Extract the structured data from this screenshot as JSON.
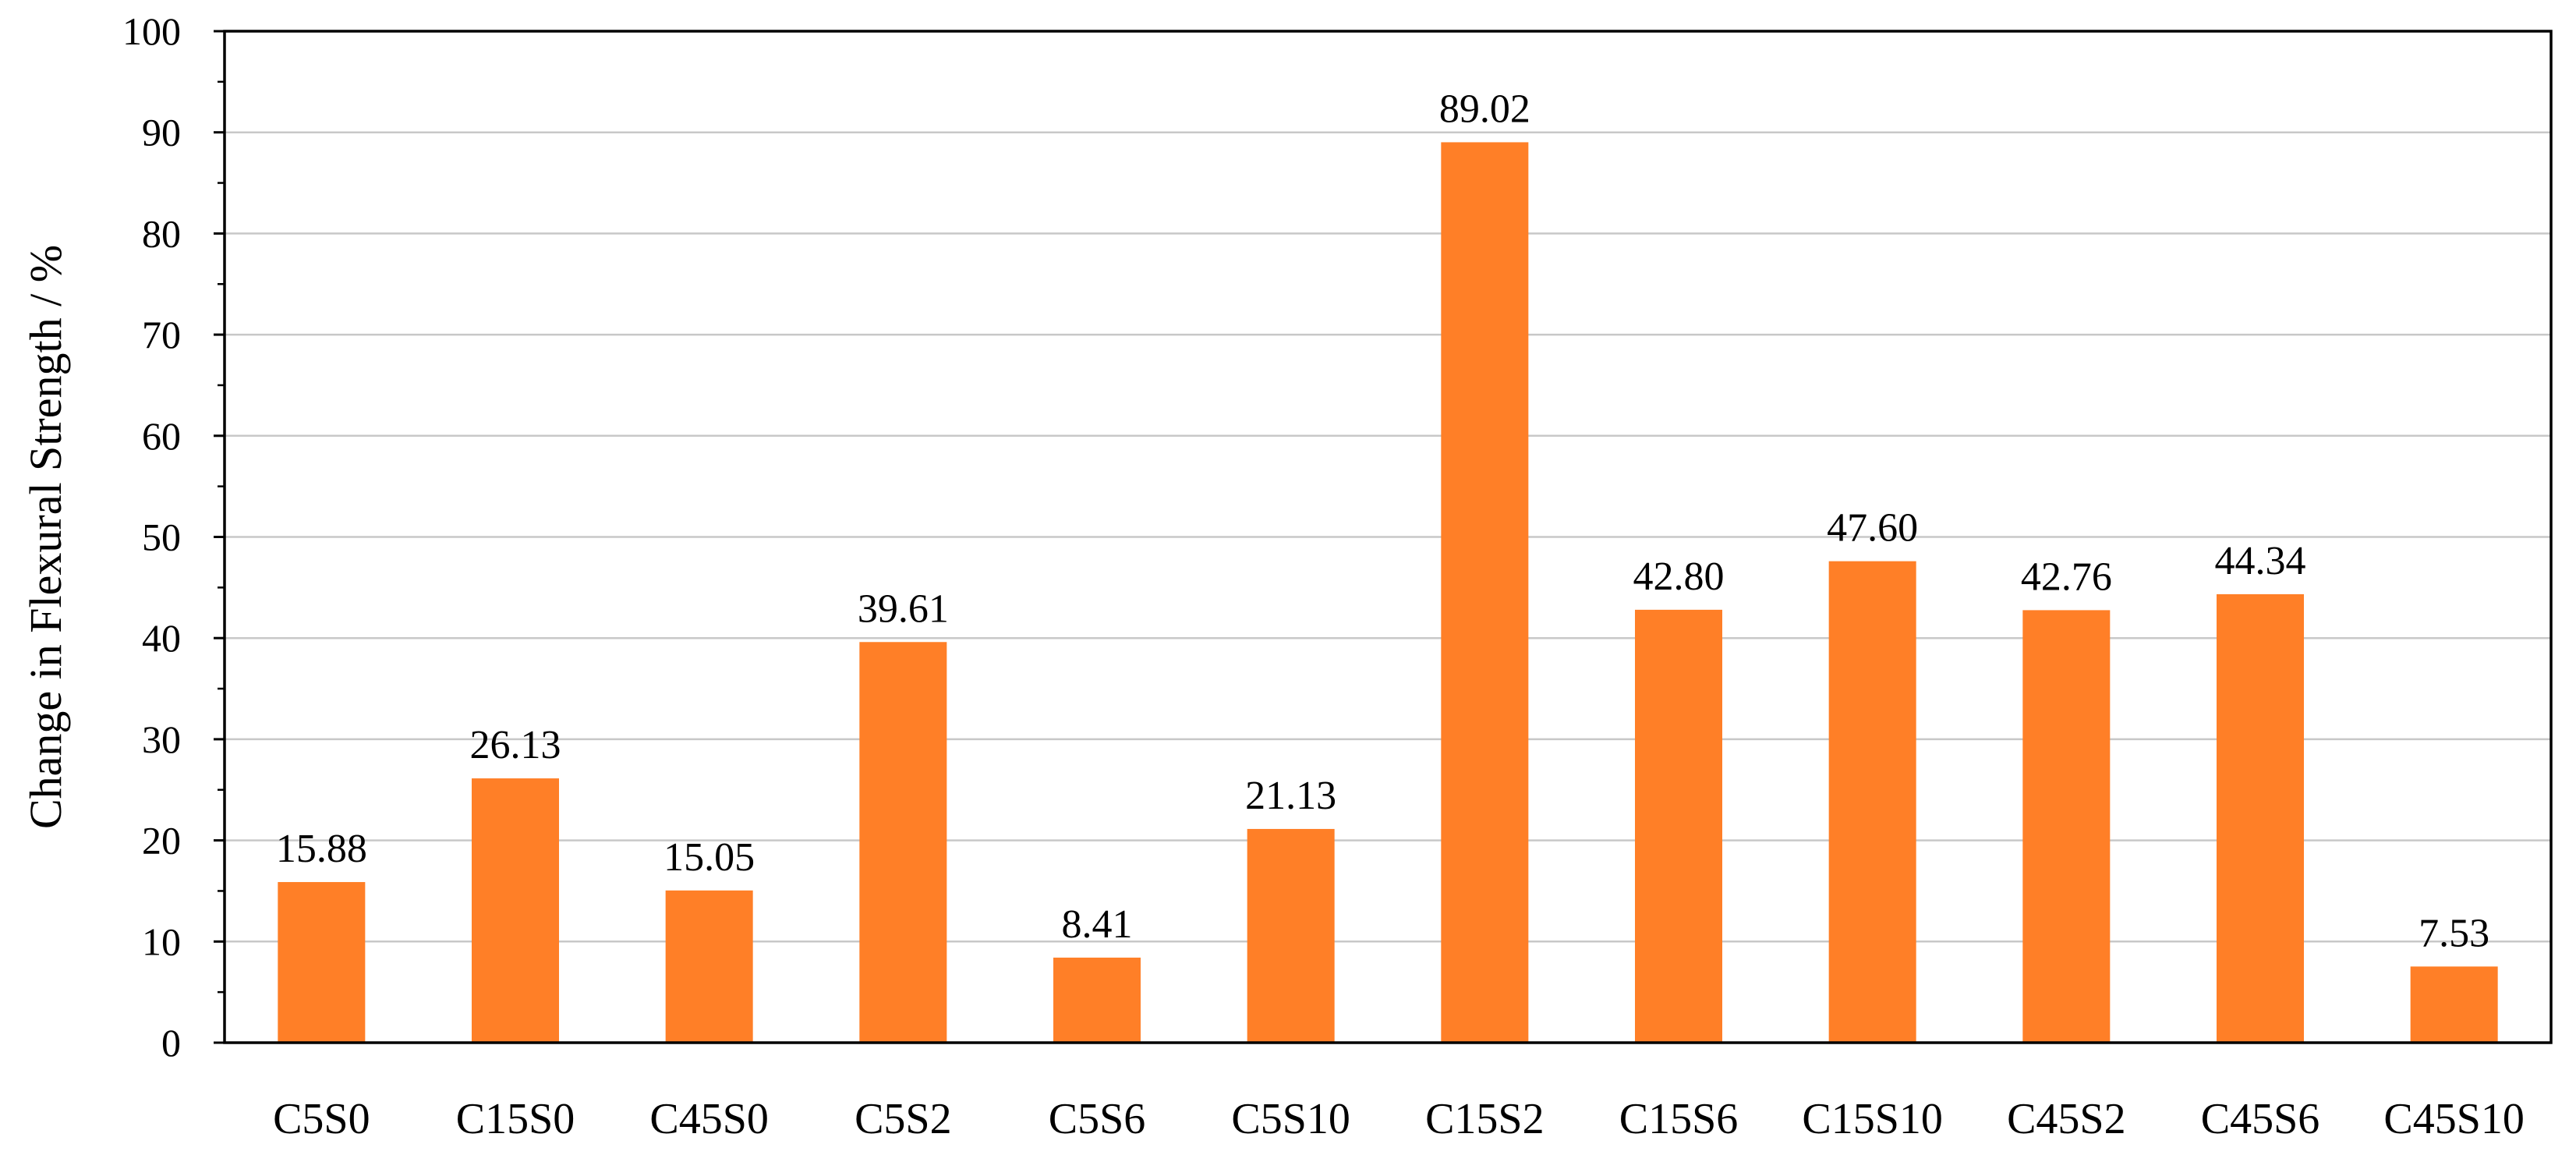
{
  "chart_data": {
    "type": "bar",
    "title": "",
    "xlabel": "",
    "ylabel": "Change in Flexural Strength / %",
    "ylim": [
      0,
      100
    ],
    "ytick_step": 10,
    "yticks": [
      "0",
      "10",
      "20",
      "30",
      "40",
      "50",
      "60",
      "70",
      "80",
      "90",
      "100"
    ],
    "grid": true,
    "legend": "none",
    "bar_color": "#FF7F27",
    "categories": [
      "C5S0",
      "C15S0",
      "C45S0",
      "C5S2",
      "C5S6",
      "C5S10",
      "C15S2",
      "C15S6",
      "C15S10",
      "C45S2",
      "C45S6",
      "C45S10"
    ],
    "values": [
      15.88,
      26.13,
      15.05,
      39.61,
      8.41,
      21.13,
      89.02,
      42.8,
      47.6,
      42.76,
      44.34,
      7.53
    ],
    "data_labels": [
      "15.88",
      "26.13",
      "15.05",
      "39.61",
      "8.41",
      "21.13",
      "89.02",
      "42.80",
      "47.60",
      "42.76",
      "44.34",
      "7.53"
    ]
  }
}
